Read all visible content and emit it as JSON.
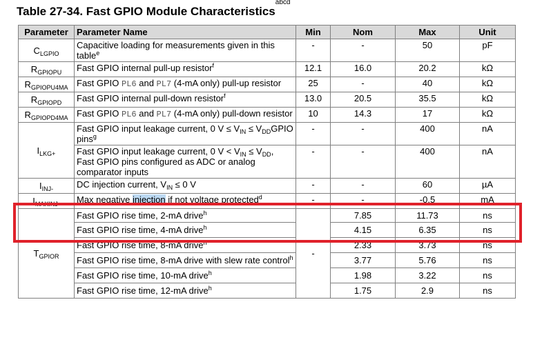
{
  "title": {
    "text": "Table 27-34. Fast GPIO Module Characteristics",
    "note": "abcd"
  },
  "headers": [
    "Parameter",
    "Parameter Name",
    "Min",
    "Nom",
    "Max",
    "Unit"
  ],
  "rows": [
    {
      "sym": "C",
      "sub": "LGPIO",
      "name": "Capacitive loading for measurements given in this table",
      "fn": "e",
      "min": "-",
      "nom": "-",
      "max": "50",
      "unit": "pF"
    },
    {
      "sym": "R",
      "sub": "GPIOPU",
      "name": "Fast GPIO internal pull-up resistor",
      "fn": "f",
      "min": "12.1",
      "nom": "16.0",
      "max": "20.2",
      "unit": "kΩ"
    },
    {
      "sym": "R",
      "sub": "GPIOPU4MA",
      "name_a": "Fast GPIO ",
      "pin1": "PL6",
      "name_b": " and ",
      "pin2": "PL7",
      "name_c": " (4-mA only) pull-up resistor",
      "min": "25",
      "nom": "-",
      "max": "40",
      "unit": "kΩ"
    },
    {
      "sym": "R",
      "sub": "GPIOPD",
      "name": "Fast GPIO internal pull-down resistor",
      "fn": "f",
      "min": "13.0",
      "nom": "20.5",
      "max": "35.5",
      "unit": "kΩ"
    },
    {
      "sym": "R",
      "sub": "GPIOPD4MA",
      "name_a": "Fast GPIO ",
      "pin1": "PL6",
      "name_b": " and ",
      "pin2": "PL7",
      "name_c": " (4-mA only) pull-down resistor",
      "min": "10",
      "nom": "14.3",
      "max": "17",
      "unit": "kΩ"
    }
  ],
  "lkg": {
    "sym": "I",
    "sub": "LKG+",
    "rows": [
      {
        "a": "Fast GPIO input leakage current, 0 V ≤ V",
        "s1": "IN",
        "b": " ≤ V",
        "s2": "DD",
        "c": "GPIO pins",
        "fn": "g",
        "min": "-",
        "nom": "-",
        "max": "400",
        "unit": "nA"
      },
      {
        "a": "Fast GPIO input leakage current, 0 V < V",
        "s1": "IN",
        "b": " ≤ V",
        "s2": "DD",
        "c": ", Fast GPIO pins configured as ADC or analog comparator inputs",
        "min": "-",
        "nom": "-",
        "max": "400",
        "unit": "nA"
      }
    ]
  },
  "inj": {
    "sym": "I",
    "sub": "INJ-",
    "a": "DC injection current, V",
    "s1": "IN",
    "b": " ≤ 0 V",
    "min": "-",
    "nom": "-",
    "max": "60",
    "unit": "µA"
  },
  "maxinj": {
    "sym": "I",
    "sub": "MAXINJ-",
    "a": "Max negative ",
    "hl": "injection",
    "b": " if not voltage protected",
    "fn": "d",
    "min": "-",
    "nom": "-",
    "max": "-0.5",
    "unit": "mA"
  },
  "gpior": {
    "sym": "T",
    "sub": "GPIOR",
    "min": "-",
    "rows": [
      {
        "name": "Fast GPIO rise time, 2-mA drive",
        "fn": "h",
        "nom": "7.85",
        "max": "11.73",
        "unit": "ns"
      },
      {
        "name": "Fast GPIO rise time, 4-mA drive",
        "fn": "h",
        "nom": "4.15",
        "max": "6.35",
        "unit": "ns"
      },
      {
        "name": "Fast GPIO rise time, 8-mA drive",
        "fn": "h",
        "nom": "2.33",
        "max": "3.73",
        "unit": "ns"
      },
      {
        "name": "Fast GPIO rise time, 8-mA drive with slew rate control",
        "fn": "h",
        "nom": "3.77",
        "max": "5.76",
        "unit": "ns"
      },
      {
        "name": "Fast GPIO rise time, 10-mA drive",
        "fn": "h",
        "nom": "1.98",
        "max": "3.22",
        "unit": "ns"
      },
      {
        "name": "Fast GPIO rise time, 12-mA drive",
        "fn": "h",
        "nom": "1.75",
        "max": "2.9",
        "unit": "ns"
      }
    ]
  },
  "colors": {
    "highlight_box": "#e0222b",
    "header_bg": "#d9d9d9",
    "text_highlight": "#bcd9f2"
  }
}
